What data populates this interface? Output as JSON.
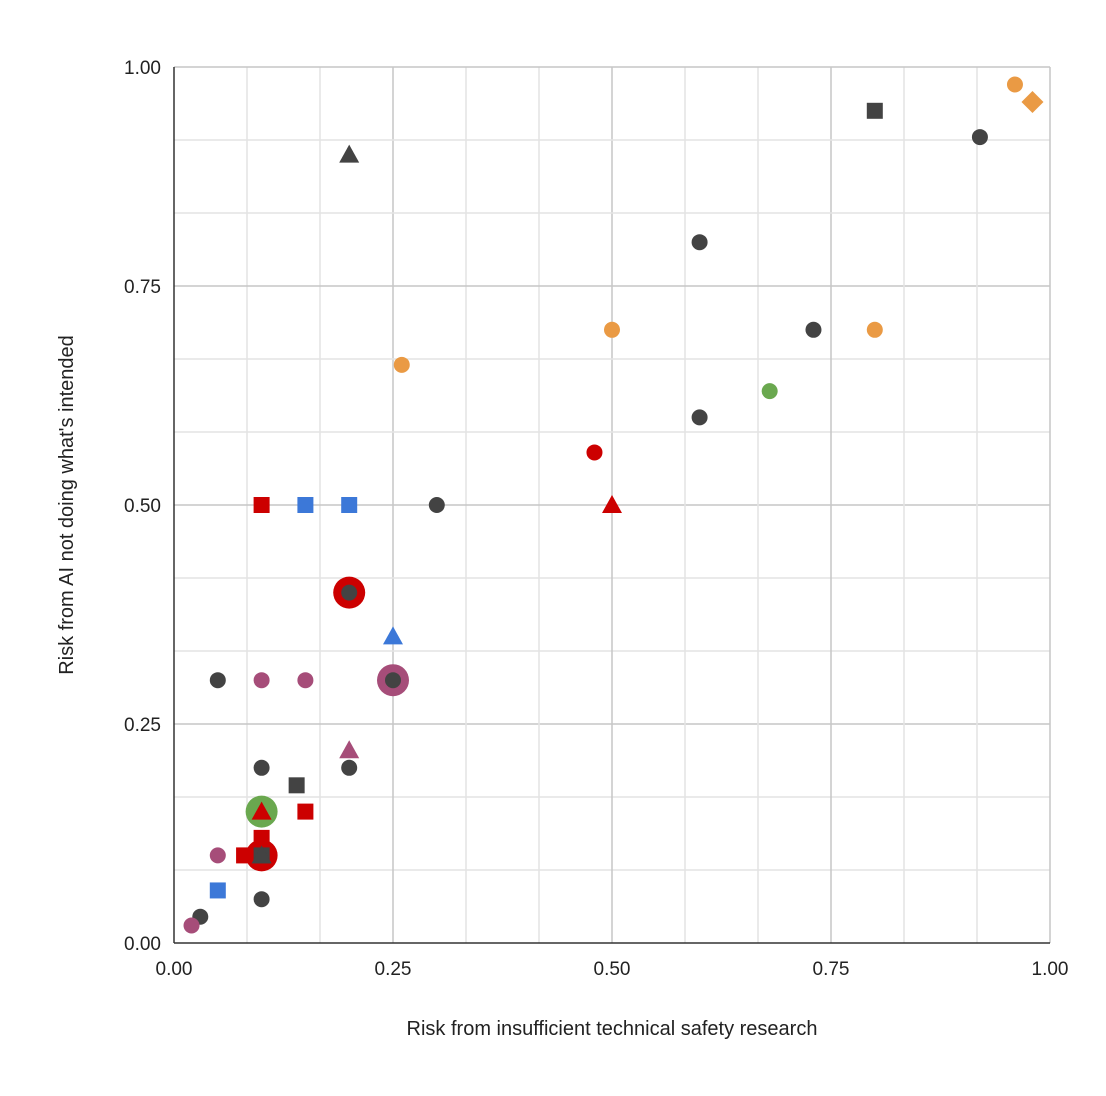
{
  "chart_data": {
    "type": "scatter",
    "title": "",
    "xlabel": "Risk from insufficient technical safety research",
    "ylabel": "Risk from AI not doing what's intended",
    "xlim": [
      0,
      1
    ],
    "ylim": [
      0,
      1
    ],
    "x_ticks": [
      "0.00",
      "0.25",
      "0.50",
      "0.75",
      "1.00"
    ],
    "y_ticks": [
      "0.00",
      "0.25",
      "0.50",
      "0.75",
      "1.00"
    ],
    "grid": true,
    "legend": "none",
    "colors": {
      "black": "#434343",
      "orange": "#ea9a44",
      "red": "#cc0000",
      "blue": "#3c78d8",
      "purple": "#a64d79",
      "green": "#6aa84f"
    },
    "points": [
      {
        "x": 0.96,
        "y": 0.98,
        "shape": "circle",
        "color": "orange"
      },
      {
        "x": 0.98,
        "y": 0.96,
        "shape": "diamond",
        "color": "orange"
      },
      {
        "x": 0.8,
        "y": 0.95,
        "shape": "square",
        "color": "black"
      },
      {
        "x": 0.92,
        "y": 0.92,
        "shape": "circle",
        "color": "black"
      },
      {
        "x": 0.2,
        "y": 0.9,
        "shape": "triangle",
        "color": "black"
      },
      {
        "x": 0.6,
        "y": 0.8,
        "shape": "circle",
        "color": "black"
      },
      {
        "x": 0.5,
        "y": 0.7,
        "shape": "circle",
        "color": "orange"
      },
      {
        "x": 0.73,
        "y": 0.7,
        "shape": "circle",
        "color": "black"
      },
      {
        "x": 0.8,
        "y": 0.7,
        "shape": "circle",
        "color": "orange"
      },
      {
        "x": 0.26,
        "y": 0.66,
        "shape": "circle",
        "color": "orange"
      },
      {
        "x": 0.68,
        "y": 0.63,
        "shape": "circle",
        "color": "green"
      },
      {
        "x": 0.6,
        "y": 0.6,
        "shape": "circle",
        "color": "black"
      },
      {
        "x": 0.48,
        "y": 0.56,
        "shape": "circle",
        "color": "red"
      },
      {
        "x": 0.5,
        "y": 0.5,
        "shape": "triangle",
        "color": "red"
      },
      {
        "x": 0.1,
        "y": 0.5,
        "shape": "square",
        "color": "red"
      },
      {
        "x": 0.15,
        "y": 0.5,
        "shape": "square",
        "color": "blue"
      },
      {
        "x": 0.2,
        "y": 0.5,
        "shape": "square",
        "color": "blue"
      },
      {
        "x": 0.3,
        "y": 0.5,
        "shape": "circle",
        "color": "black"
      },
      {
        "x": 0.2,
        "y": 0.4,
        "shape": "circle",
        "color": "red",
        "size": "large"
      },
      {
        "x": 0.2,
        "y": 0.4,
        "shape": "circle",
        "color": "black"
      },
      {
        "x": 0.25,
        "y": 0.35,
        "shape": "triangle",
        "color": "blue"
      },
      {
        "x": 0.05,
        "y": 0.3,
        "shape": "circle",
        "color": "black"
      },
      {
        "x": 0.1,
        "y": 0.3,
        "shape": "circle",
        "color": "purple"
      },
      {
        "x": 0.15,
        "y": 0.3,
        "shape": "circle",
        "color": "purple"
      },
      {
        "x": 0.25,
        "y": 0.3,
        "shape": "circle",
        "color": "purple",
        "size": "large"
      },
      {
        "x": 0.25,
        "y": 0.3,
        "shape": "circle",
        "color": "black"
      },
      {
        "x": 0.2,
        "y": 0.22,
        "shape": "triangle",
        "color": "purple"
      },
      {
        "x": 0.1,
        "y": 0.2,
        "shape": "circle",
        "color": "black"
      },
      {
        "x": 0.2,
        "y": 0.2,
        "shape": "circle",
        "color": "black"
      },
      {
        "x": 0.14,
        "y": 0.18,
        "shape": "square",
        "color": "black"
      },
      {
        "x": 0.1,
        "y": 0.15,
        "shape": "circle",
        "color": "green",
        "size": "large"
      },
      {
        "x": 0.1,
        "y": 0.15,
        "shape": "triangle",
        "color": "red"
      },
      {
        "x": 0.15,
        "y": 0.15,
        "shape": "square",
        "color": "red"
      },
      {
        "x": 0.1,
        "y": 0.12,
        "shape": "square",
        "color": "red"
      },
      {
        "x": 0.1,
        "y": 0.1,
        "shape": "circle",
        "color": "red",
        "size": "large"
      },
      {
        "x": 0.08,
        "y": 0.1,
        "shape": "square",
        "color": "red"
      },
      {
        "x": 0.1,
        "y": 0.1,
        "shape": "square",
        "color": "black"
      },
      {
        "x": 0.1,
        "y": 0.1,
        "shape": "triangle",
        "color": "black"
      },
      {
        "x": 0.05,
        "y": 0.1,
        "shape": "circle",
        "color": "purple"
      },
      {
        "x": 0.05,
        "y": 0.06,
        "shape": "square",
        "color": "blue"
      },
      {
        "x": 0.1,
        "y": 0.05,
        "shape": "circle",
        "color": "black"
      },
      {
        "x": 0.03,
        "y": 0.03,
        "shape": "circle",
        "color": "black"
      },
      {
        "x": 0.02,
        "y": 0.02,
        "shape": "circle",
        "color": "purple"
      }
    ]
  }
}
